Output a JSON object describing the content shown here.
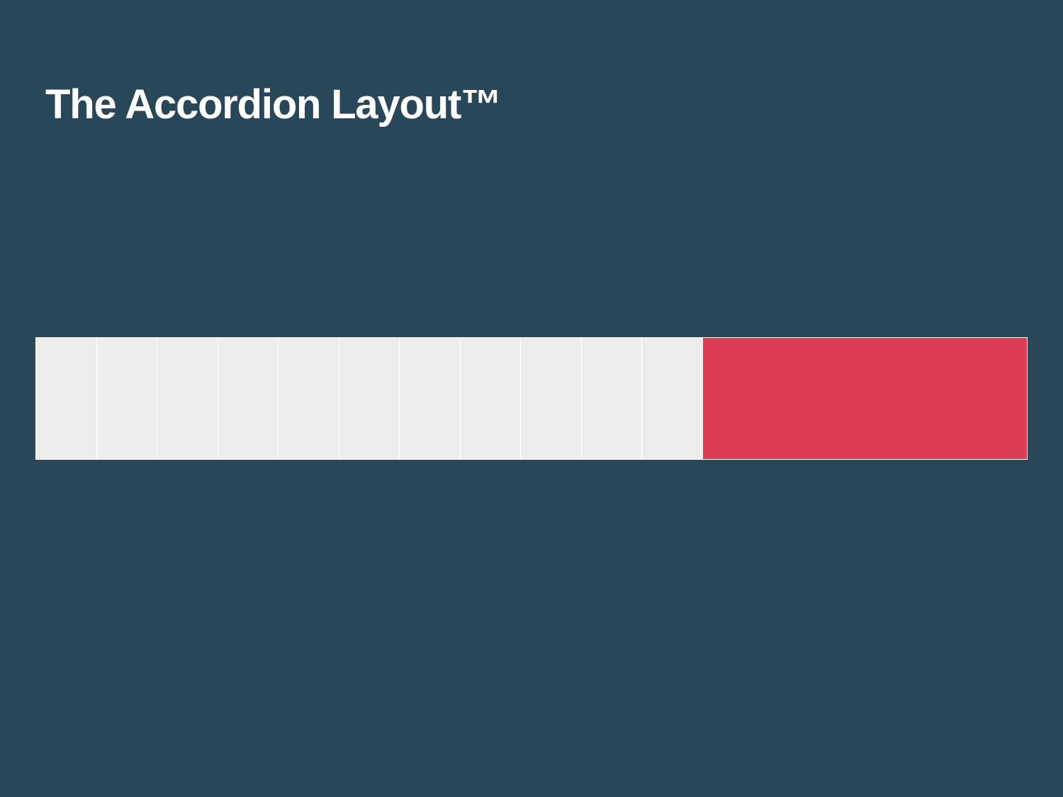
{
  "slide": {
    "title": "The Accordion Layout™"
  },
  "accordion": {
    "panel_count": 12,
    "expanded_index": 11,
    "colors": {
      "background": "#284759",
      "collapsed_panel": "#ededed",
      "expanded_panel": "#da3d54",
      "divider": "#ffffff"
    }
  }
}
